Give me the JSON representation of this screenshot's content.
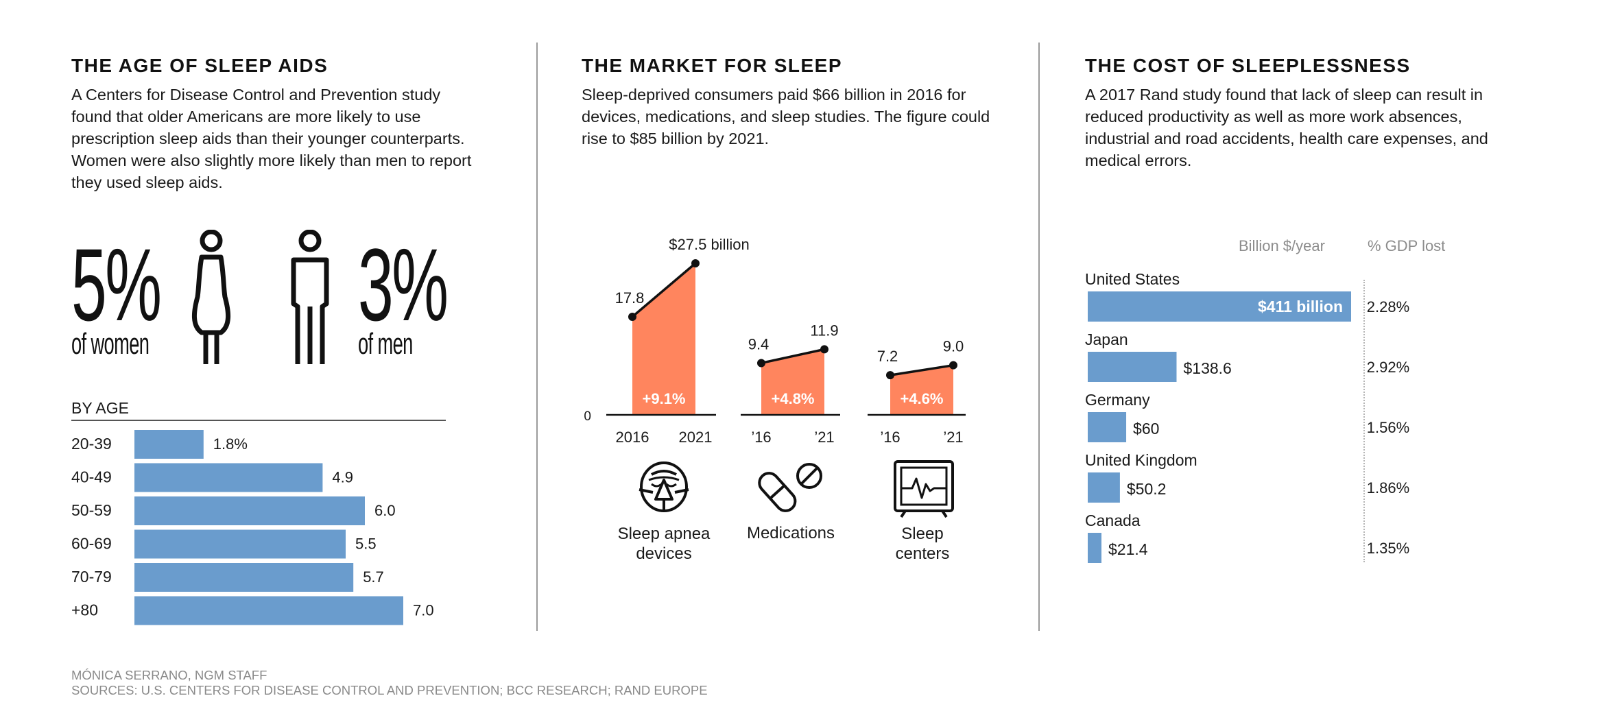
{
  "colors": {
    "bar_blue": "#6a9ccd",
    "market_orange": "#ff855e",
    "text": "#1a1a1a",
    "divider": "#9a9a9a",
    "muted": "#8c8c8c"
  },
  "panel1": {
    "title": "THE AGE OF SLEEP AIDS",
    "description": "A Centers for Disease Control and Prevention study found that older Americans are more likely to use prescription sleep aids than their younger counterparts. Women were also slightly more likely than men to report they used sleep aids.",
    "women": {
      "value": "5%",
      "label": "of women",
      "icon": "woman-icon"
    },
    "men": {
      "value": "3%",
      "label": "of men",
      "icon": "man-icon"
    },
    "by_age_label": "BY AGE"
  },
  "panel2": {
    "title": "THE MARKET FOR SLEEP",
    "description": "Sleep-deprived consumers paid $66 billion in 2016 for devices, medications, and sleep studies. The figure could rise to $85 billion by 2021.",
    "zero_label": "0",
    "categories": [
      {
        "name": "Sleep apnea devices",
        "icon": "cpap-mask-icon"
      },
      {
        "name": "Medications",
        "icon": "pill-icon"
      },
      {
        "name": "Sleep centers",
        "icon": "heart-monitor-icon"
      }
    ]
  },
  "panel3": {
    "title": "THE COST OF SLEEPLESSNESS",
    "description": "A 2017 Rand study found that lack of sleep can result in reduced productivity as well as more work absences, industrial and road accidents, health care expenses, and medical errors.",
    "col_billion": "Billion $/year",
    "col_gdp": "% GDP lost"
  },
  "credits": {
    "author": "MÓNICA SERRANO, NGM STAFF",
    "sources": "SOURCES: U.S. CENTERS FOR DISEASE CONTROL AND PREVENTION; BCC RESEARCH; RAND EUROPE"
  },
  "chart_data": [
    {
      "type": "bar",
      "orientation": "horizontal",
      "title": "BY AGE",
      "categories": [
        "20-39",
        "40-49",
        "50-59",
        "60-69",
        "70-79",
        "+80"
      ],
      "values": [
        1.8,
        4.9,
        6.0,
        5.5,
        5.7,
        7.0
      ],
      "value_labels": [
        "1.8%",
        "4.9",
        "6.0",
        "5.5",
        "5.7",
        "7.0"
      ],
      "unit": "%",
      "xlim": [
        0,
        7.5
      ]
    },
    {
      "type": "area",
      "title": "THE MARKET FOR SLEEP",
      "unit": "billion $",
      "ylim": [
        0,
        27.5
      ],
      "series": [
        {
          "name": "Sleep apnea devices",
          "x": [
            "2016",
            "2021"
          ],
          "values": [
            17.8,
            27.5
          ],
          "value_labels": [
            "17.8",
            "$27.5 billion"
          ],
          "growth": "+9.1%"
        },
        {
          "name": "Medications",
          "x": [
            "’16",
            "’21"
          ],
          "values": [
            9.4,
            11.9
          ],
          "value_labels": [
            "9.4",
            "11.9"
          ],
          "growth": "+4.8%"
        },
        {
          "name": "Sleep centers",
          "x": [
            "’16",
            "’21"
          ],
          "values": [
            7.2,
            9.0
          ],
          "value_labels": [
            "7.2",
            "9.0"
          ],
          "growth": "+4.6%"
        }
      ]
    },
    {
      "type": "bar",
      "orientation": "horizontal",
      "title": "THE COST OF SLEEPLESSNESS",
      "categories": [
        "United States",
        "Japan",
        "Germany",
        "United Kingdom",
        "Canada"
      ],
      "values": [
        411,
        138.6,
        60,
        50.2,
        21.4
      ],
      "value_labels": [
        "$411 billion",
        "$138.6",
        "$60",
        "$50.2",
        "$21.4"
      ],
      "gdp_lost": [
        "2.28%",
        "2.92%",
        "1.56%",
        "1.86%",
        "1.35%"
      ],
      "xlabel": "Billion $/year"
    }
  ]
}
